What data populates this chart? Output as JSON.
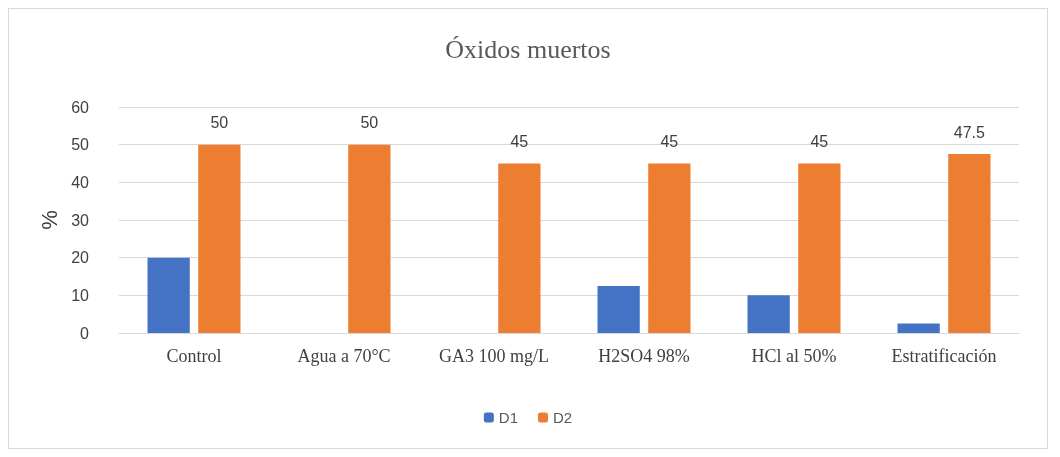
{
  "chart_data": {
    "type": "bar",
    "title": "Óxidos muertos",
    "ylabel": "%",
    "categories": [
      "Control",
      "Agua a 70°C",
      "GA3 100 mg/L",
      "H2SO4 98%",
      "HCl al 50%",
      "Estratificación"
    ],
    "series": [
      {
        "name": "D1",
        "color": "#4472c4",
        "values": [
          20,
          0,
          0,
          12.5,
          10,
          2.5
        ]
      },
      {
        "name": "D2",
        "color": "#ed7d31",
        "values": [
          50,
          50,
          45,
          45,
          45,
          47.5
        ],
        "value_labels": [
          "50",
          "50",
          "45",
          "45",
          "45",
          "47.5"
        ]
      }
    ],
    "ylim": [
      0,
      60
    ],
    "yticks": [
      0,
      10,
      20,
      30,
      40,
      50,
      60
    ],
    "grid": "y",
    "legend": "bottom"
  }
}
